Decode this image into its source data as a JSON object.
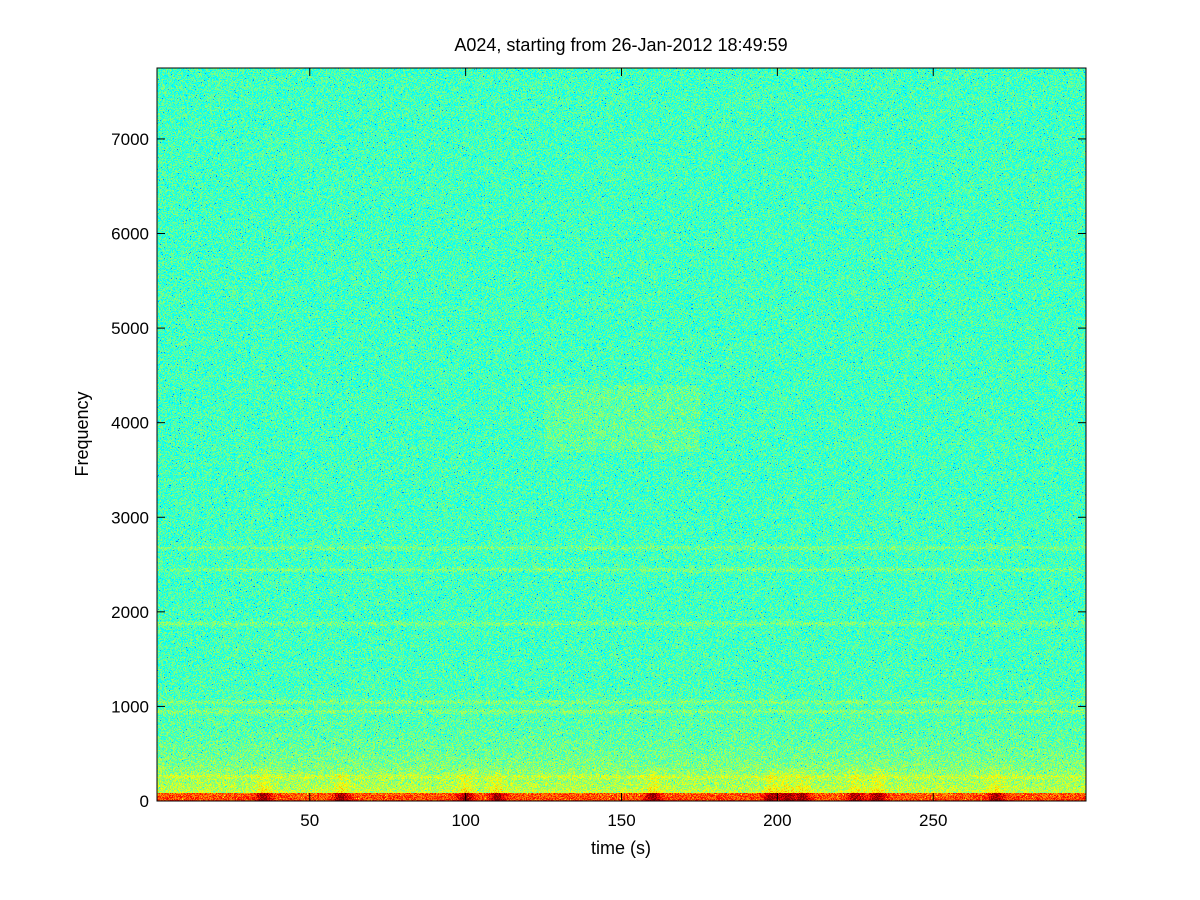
{
  "chart_data": {
    "type": "heatmap",
    "title": "A024, starting from 26-Jan-2012 18:49:59",
    "xlabel": "time (s)",
    "ylabel": "Frequency",
    "xlim": [
      1,
      299
    ],
    "ylim": [
      0,
      7750
    ],
    "x_ticks": [
      50,
      100,
      150,
      200,
      250
    ],
    "y_ticks": [
      0,
      1000,
      2000,
      3000,
      4000,
      5000,
      6000,
      7000
    ],
    "colormap": "jet",
    "grid": false,
    "features": {
      "low_band_hz": [
        0,
        700
      ],
      "harmonic_bands_hz": [
        260,
        950,
        1050,
        1880,
        2450,
        2680
      ],
      "broadband_patch": {
        "time_range_s": [
          125,
          175
        ],
        "freq_range_hz": [
          3700,
          4400
        ]
      },
      "transient_bursts_s": [
        35,
        60,
        100,
        110,
        160,
        198,
        203,
        208,
        225,
        232,
        270
      ]
    }
  }
}
